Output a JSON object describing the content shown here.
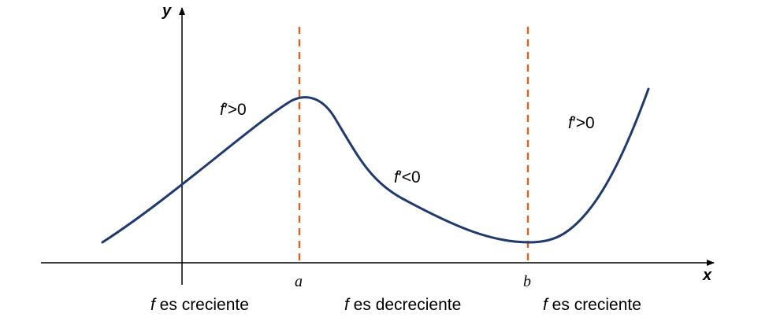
{
  "axes": {
    "x_label": "x",
    "y_label": "y"
  },
  "markers": [
    {
      "label": "a"
    },
    {
      "label": "b"
    }
  ],
  "derivative_labels": [
    {
      "f": "f",
      "rest": "′>0"
    },
    {
      "f": "f",
      "rest": "′<0"
    },
    {
      "f": "f",
      "rest": "′>0"
    }
  ],
  "intervals": [
    {
      "f": "f",
      "text": " es creciente"
    },
    {
      "f": "f",
      "text": " es decreciente"
    },
    {
      "f": "f",
      "text": " es creciente"
    }
  ],
  "colors": {
    "curve": "#1f3a6e",
    "dashed_lines": "#e0601c",
    "axes": "#000000"
  }
}
